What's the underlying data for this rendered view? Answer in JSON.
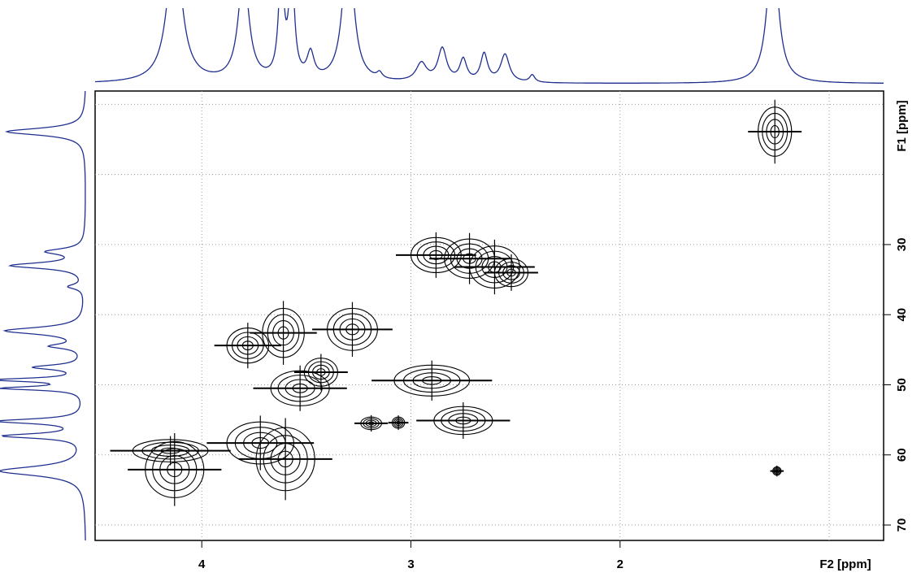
{
  "chart_data": {
    "type": "contour2d",
    "x_label": "F2 [ppm]",
    "y_label": "F1 [ppm]",
    "xlim": [
      4.51,
      0.74
    ],
    "ylim": [
      8.1,
      72.2
    ],
    "xticks": [
      4,
      3,
      2
    ],
    "yticks": [
      30,
      40,
      50,
      60,
      70
    ],
    "x_grid": [
      4,
      3,
      2,
      1
    ],
    "y_grid": [
      10,
      20,
      30,
      40,
      50,
      60,
      70
    ],
    "contour_color": "#000000",
    "peaks": [
      {
        "x": 1.26,
        "y": 13.9,
        "wx": 0.08,
        "wy": 3.5
      },
      {
        "x": 1.25,
        "y": 62.3,
        "wx": 0.02,
        "wy": 0.6
      },
      {
        "x": 2.88,
        "y": 31.5,
        "wx": 0.12,
        "wy": 2.5
      },
      {
        "x": 2.72,
        "y": 32.0,
        "wx": 0.12,
        "wy": 2.8
      },
      {
        "x": 2.6,
        "y": 33.2,
        "wx": 0.12,
        "wy": 3.0
      },
      {
        "x": 2.52,
        "y": 34.0,
        "wx": 0.08,
        "wy": 2.0
      },
      {
        "x": 3.61,
        "y": 42.6,
        "wx": 0.1,
        "wy": 3.5
      },
      {
        "x": 3.28,
        "y": 42.1,
        "wx": 0.12,
        "wy": 3.0
      },
      {
        "x": 3.78,
        "y": 44.4,
        "wx": 0.1,
        "wy": 2.5
      },
      {
        "x": 3.43,
        "y": 48.2,
        "wx": 0.08,
        "wy": 2.0
      },
      {
        "x": 3.53,
        "y": 50.5,
        "wx": 0.14,
        "wy": 2.5
      },
      {
        "x": 2.9,
        "y": 49.4,
        "wx": 0.18,
        "wy": 2.2
      },
      {
        "x": 2.75,
        "y": 55.1,
        "wx": 0.14,
        "wy": 2.0
      },
      {
        "x": 3.06,
        "y": 55.4,
        "wx": 0.03,
        "wy": 0.8
      },
      {
        "x": 3.19,
        "y": 55.5,
        "wx": 0.05,
        "wy": 0.9
      },
      {
        "x": 3.72,
        "y": 58.3,
        "wx": 0.16,
        "wy": 3.0
      },
      {
        "x": 3.6,
        "y": 60.6,
        "wx": 0.14,
        "wy": 4.5
      },
      {
        "x": 4.15,
        "y": 59.4,
        "wx": 0.18,
        "wy": 1.6
      },
      {
        "x": 4.13,
        "y": 62.1,
        "wx": 0.14,
        "wy": 4.0
      }
    ],
    "projections": {
      "f2": {
        "color": "#1f2f8f",
        "peaks": [
          {
            "x": 4.13,
            "height": 2.0,
            "width": 0.04
          },
          {
            "x": 3.8,
            "height": 1.5,
            "width": 0.03
          },
          {
            "x": 3.62,
            "height": 1.5,
            "width": 0.015
          },
          {
            "x": 3.57,
            "height": 1.5,
            "width": 0.015
          },
          {
            "x": 3.48,
            "height": 0.35,
            "width": 0.02
          },
          {
            "x": 3.3,
            "height": 2.0,
            "width": 0.03
          },
          {
            "x": 3.15,
            "height": 0.08,
            "width": 0.015
          },
          {
            "x": 2.95,
            "height": 0.25,
            "width": 0.03
          },
          {
            "x": 2.85,
            "height": 0.45,
            "width": 0.025
          },
          {
            "x": 2.75,
            "height": 0.3,
            "width": 0.02
          },
          {
            "x": 2.65,
            "height": 0.38,
            "width": 0.02
          },
          {
            "x": 2.55,
            "height": 0.38,
            "width": 0.025
          },
          {
            "x": 2.42,
            "height": 0.1,
            "width": 0.015
          },
          {
            "x": 1.27,
            "height": 2.0,
            "width": 0.03
          }
        ]
      },
      "f1": {
        "color": "#1f2f8f",
        "peaks": [
          {
            "y": 13.9,
            "height": 1.3,
            "width": 0.6
          },
          {
            "y": 31.0,
            "height": 0.6,
            "width": 0.5
          },
          {
            "y": 33.0,
            "height": 1.2,
            "width": 0.5
          },
          {
            "y": 36.0,
            "height": 0.25,
            "width": 0.4
          },
          {
            "y": 42.3,
            "height": 1.3,
            "width": 0.6
          },
          {
            "y": 44.5,
            "height": 0.5,
            "width": 0.4
          },
          {
            "y": 47.5,
            "height": 0.8,
            "width": 0.4
          },
          {
            "y": 49.3,
            "height": 1.4,
            "width": 0.3
          },
          {
            "y": 50.5,
            "height": 1.3,
            "width": 0.3
          },
          {
            "y": 55.2,
            "height": 1.4,
            "width": 0.4
          },
          {
            "y": 57.3,
            "height": 1.3,
            "width": 0.4
          },
          {
            "y": 62.3,
            "height": 1.4,
            "width": 0.8
          }
        ]
      }
    }
  }
}
